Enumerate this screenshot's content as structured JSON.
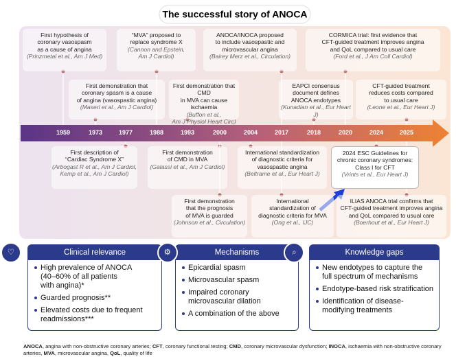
{
  "title": "The successful story of ANOCA",
  "years": [
    "1959",
    "1973",
    "1977",
    "1988",
    "1993",
    "2000",
    "2004",
    "2017",
    "2018",
    "2020",
    "2024",
    "2025"
  ],
  "top_events": [
    {
      "lines": [
        "First hypothesis of",
        "coronary vasospasm",
        "as a cause of angina"
      ],
      "cite": [
        "(Prinzmetal et al., Am J Med)"
      ]
    },
    {
      "lines": [
        "“MVA” proposed to",
        "replace syndrome X"
      ],
      "cite": [
        "(Cannon and Epstein,",
        "Am J Cardiol)"
      ]
    },
    {
      "lines": [
        "ANOCA/INOCA proposed",
        "to include vasospastic and",
        "microvascular angina"
      ],
      "cite": [
        "(Bairey Merz et al., Circulation)"
      ]
    },
    {
      "lines": [
        "CORMICA trial: first evidence that",
        "CFT-guided treatment improves angina",
        "and QoL compared to usual care"
      ],
      "cite": [
        "(Ford et al., J Am Coll Cardiol)"
      ]
    },
    {
      "lines": [
        "First demonstration that",
        "coronary spasm is a cause",
        "of angina (vasospastic angina)"
      ],
      "cite": [
        "(Maseri et al., Am J Cardiol)"
      ]
    },
    {
      "lines": [
        "First demonstration that CMD",
        "in MVA can cause ischaemia"
      ],
      "cite": [
        "(Buffon et al.,",
        "Am J Physiol Heart Circ)"
      ]
    },
    {
      "lines": [
        "EAPCI consensus",
        "document defines",
        "ANOCA endotypes"
      ],
      "cite": [
        "(Kunadian et al., Eur Heart J)"
      ]
    },
    {
      "lines": [
        "CFT-guided treatment",
        "reduces costs compared",
        "to usual care"
      ],
      "cite": [
        "(Leone et al., Eur Heart J)"
      ]
    }
  ],
  "bottom_events": [
    {
      "lines": [
        "First description of",
        "“Cardiac Syndrome X”"
      ],
      "cite": [
        "(Arbogast R et al., Am J Cardiol,",
        "Kemp et al., Am J Cardiol)"
      ]
    },
    {
      "lines": [
        "First demonstration",
        "of CMD in MVA"
      ],
      "cite": [
        "(Galassi et al., Am J Cardiol)"
      ]
    },
    {
      "lines": [
        "International standardization",
        "of diagnostic criteria for",
        "vasospastic angina"
      ],
      "cite": [
        "(Beltrame et al., Eur Heart J)"
      ]
    },
    {
      "lines": [
        "2024 ESC Guidelines for",
        "chronic coronary syndromes:",
        "Class I for CFT"
      ],
      "cite": [
        "(Vrints et al., Eur Heart J)"
      ]
    },
    {
      "lines": [
        "First demonstration",
        "that the prognosis",
        "of MVA is guarded"
      ],
      "cite": [
        "(Johnson et al., Circulation)"
      ]
    },
    {
      "lines": [
        "International",
        "standardization of",
        "diagnostic criteria for MVA"
      ],
      "cite": [
        "(Ong et al., IJC)"
      ]
    },
    {
      "lines": [
        "ILIAS ANOCA trial confirms that",
        "CFT-guided treatment improves angina",
        "and QoL compared to usual care"
      ],
      "cite": [
        "(Boerhout et al., Eur Heart J)"
      ]
    }
  ],
  "panels": [
    {
      "title": "Clinical relevance",
      "items": [
        [
          "High prevalence of ANOCA",
          "(40–60% of all patients",
          "with angina)*"
        ],
        [
          "Guarded prognosis**"
        ],
        [
          "Elevated costs due to frequent",
          "readmissions***"
        ]
      ]
    },
    {
      "title": "Mechanisms",
      "items": [
        [
          "Epicardial spasm"
        ],
        [
          "Microvascular spasm"
        ],
        [
          "Impaired coronary",
          "microvascular dilation"
        ],
        [
          "A combination of the above"
        ]
      ]
    },
    {
      "title": "Knowledge gaps",
      "items": [
        [
          "New endotypes to capture the",
          "full spectrum of mechanisms"
        ],
        [
          "Endotype-based risk stratification"
        ],
        [
          "Identification of disease-",
          "modifying treatments"
        ]
      ]
    }
  ],
  "footnote": [
    {
      "abbr": "ANOCA",
      "def": ", angina with non-obstructive coronary arteries; "
    },
    {
      "abbr": "CFT",
      "def": ", coronary functional testing; "
    },
    {
      "abbr": "CMD",
      "def": ", coronary microvascular dysfunction; "
    },
    {
      "abbr": "INOCA",
      "def": ", ischaemia with non-obstructive coronary arteries, "
    },
    {
      "abbr": "MVA",
      "def": ", microvascular angina, "
    },
    {
      "abbr": "QoL",
      "def": ", quality of life"
    }
  ]
}
